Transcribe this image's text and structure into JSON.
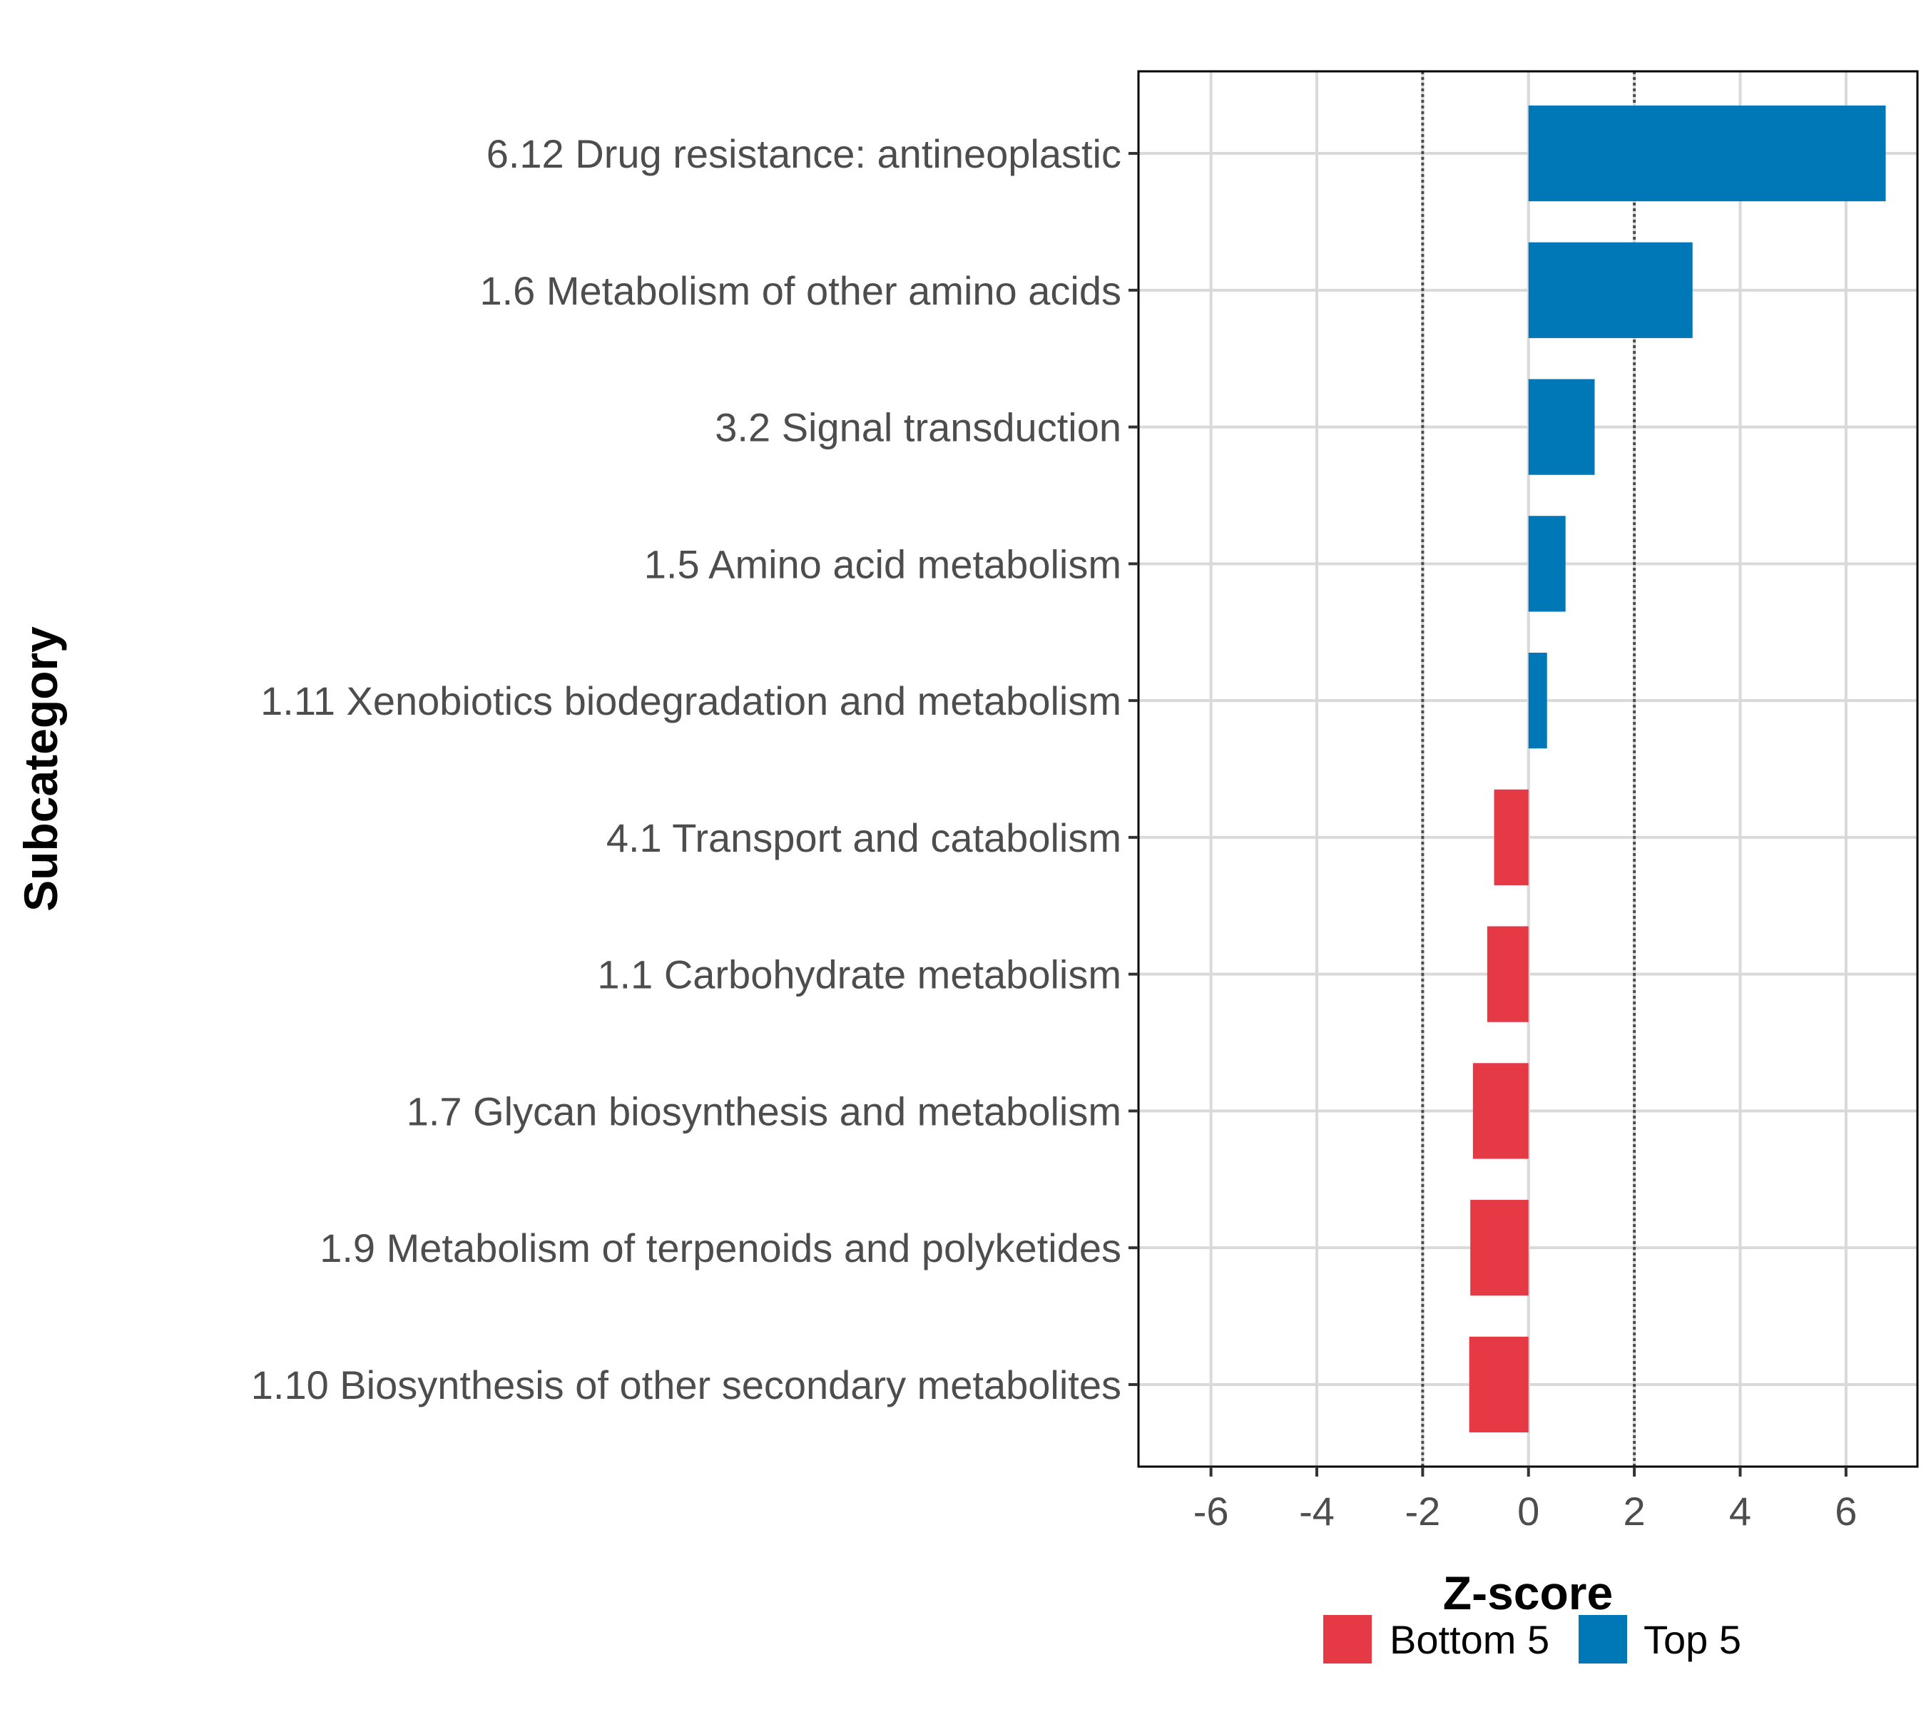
{
  "chart_data": {
    "type": "bar",
    "orientation": "horizontal",
    "title": "",
    "xlabel": "Z-score",
    "ylabel": "Subcategory",
    "xlim": [
      -7.37,
      7.35
    ],
    "xticks": [
      -6,
      -4,
      -2,
      0,
      2,
      4,
      6
    ],
    "xtick_labels": [
      "-6",
      "-4",
      "-2",
      "0",
      "2",
      "4",
      "6"
    ],
    "reference_lines": [
      {
        "x": -2,
        "style": "dotted"
      },
      {
        "x": 2,
        "style": "dotted"
      }
    ],
    "grid": true,
    "categories": [
      "6.12 Drug resistance: antineoplastic",
      "1.6 Metabolism of other amino acids",
      "3.2 Signal transduction",
      "1.5 Amino acid metabolism",
      "1.11 Xenobiotics biodegradation and metabolism",
      "4.1 Transport and catabolism",
      "1.1 Carbohydrate metabolism",
      "1.7 Glycan biosynthesis and metabolism",
      "1.9 Metabolism of terpenoids and polyketides",
      "1.10 Biosynthesis of other secondary metabolites"
    ],
    "values": [
      6.75,
      3.1,
      1.25,
      0.7,
      0.35,
      -0.65,
      -0.78,
      -1.05,
      -1.1,
      -1.12
    ],
    "groups": [
      "Top 5",
      "Top 5",
      "Top 5",
      "Top 5",
      "Top 5",
      "Bottom 5",
      "Bottom 5",
      "Bottom 5",
      "Bottom 5",
      "Bottom 5"
    ],
    "legend": {
      "position": "bottom",
      "entries": [
        {
          "label": "Bottom 5",
          "color": "#E63946"
        },
        {
          "label": "Top 5",
          "color": "#0077B6"
        }
      ]
    }
  },
  "colors": {
    "top": "#0077B6",
    "bottom": "#E63946",
    "grid": "#d9d9d9",
    "reference_line": "#4d4d4d",
    "panel_border": "#000000"
  }
}
